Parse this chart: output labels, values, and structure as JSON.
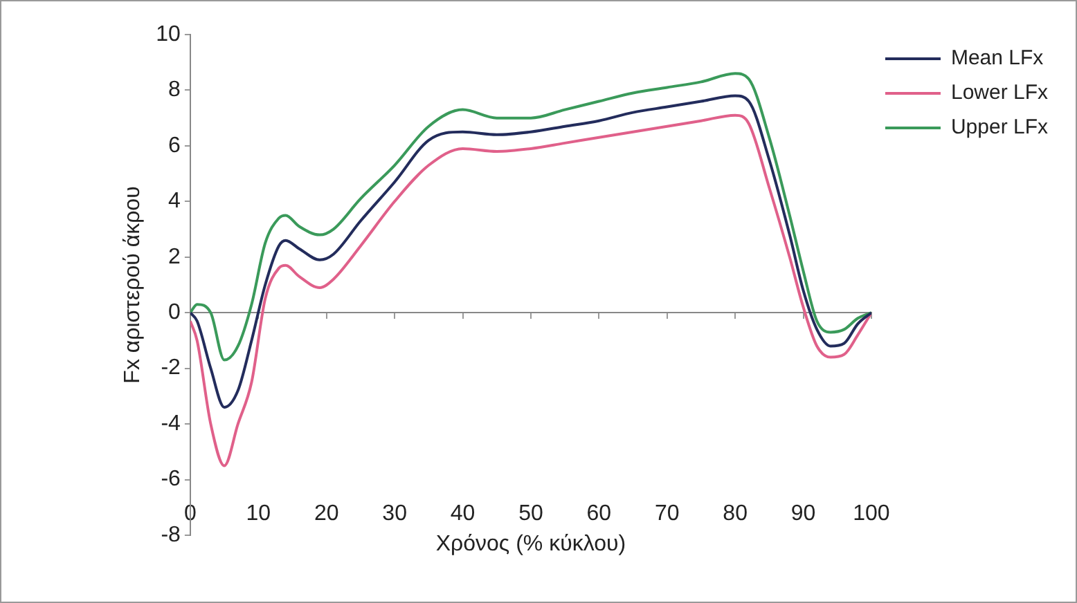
{
  "chart_data": {
    "type": "line",
    "xlabel": "Χρόνος (% κύκλου)",
    "ylabel": "Fx αριστερού άκρου",
    "xlim": [
      0,
      100
    ],
    "xticks": [
      0,
      10,
      20,
      30,
      40,
      50,
      60,
      70,
      80,
      90,
      100
    ],
    "ylim": [
      -8,
      10
    ],
    "yticks": [
      -8,
      -6,
      -4,
      -2,
      0,
      2,
      4,
      6,
      8,
      10
    ],
    "legend": "top right",
    "marker": "none",
    "line_style": "solid",
    "x": [
      0,
      1,
      3,
      5,
      7,
      9,
      11,
      13,
      14,
      16,
      19,
      21,
      25,
      30,
      35,
      40,
      45,
      50,
      55,
      60,
      65,
      70,
      75,
      80,
      82,
      85,
      88,
      90,
      92,
      94,
      96,
      98,
      100
    ],
    "series": [
      {
        "name": "Mean LFx",
        "color": "#232c5c",
        "values": [
          0,
          -0.3,
          -2,
          -3.4,
          -2.8,
          -1,
          1,
          2.4,
          2.6,
          2.3,
          1.9,
          2.1,
          3.3,
          4.7,
          6.2,
          6.5,
          6.4,
          6.5,
          6.7,
          6.9,
          7.2,
          7.4,
          7.6,
          7.8,
          7.6,
          5.5,
          2.8,
          0.8,
          -0.6,
          -1.2,
          -1.1,
          -0.4,
          0
        ]
      },
      {
        "name": "Lower LFx",
        "color": "#e0608a",
        "values": [
          -0.3,
          -1,
          -4,
          -5.5,
          -4,
          -2.5,
          0.5,
          1.6,
          1.7,
          1.3,
          0.9,
          1.2,
          2.4,
          4,
          5.3,
          5.9,
          5.8,
          5.9,
          6.1,
          6.3,
          6.5,
          6.7,
          6.9,
          7.1,
          6.8,
          4.5,
          2,
          0.2,
          -1.2,
          -1.6,
          -1.5,
          -0.8,
          0
        ]
      },
      {
        "name": "Upper LFx",
        "color": "#3a9a5a",
        "values": [
          0,
          0.3,
          0,
          -1.7,
          -1.2,
          0.3,
          2.5,
          3.4,
          3.5,
          3.1,
          2.8,
          3,
          4.1,
          5.3,
          6.7,
          7.3,
          7,
          7,
          7.3,
          7.6,
          7.9,
          8.1,
          8.3,
          8.6,
          8.4,
          6.3,
          3.5,
          1.5,
          -0.3,
          -0.7,
          -0.6,
          -0.2,
          0
        ]
      }
    ]
  }
}
